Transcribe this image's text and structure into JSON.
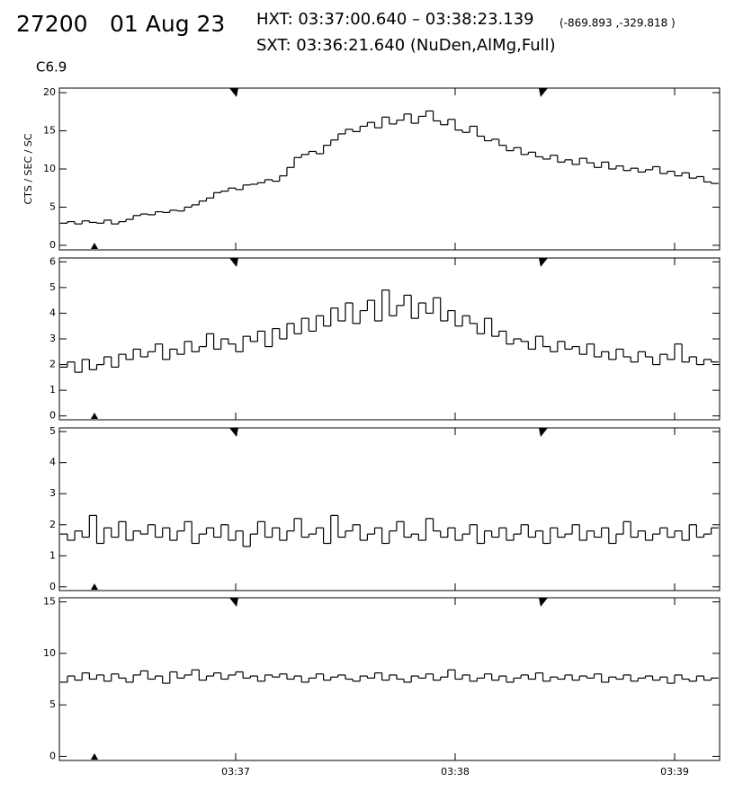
{
  "header": {
    "id": "27200",
    "date": "01 Aug 23",
    "hxt": "HXT: 03:37:00.640 – 03:38:23.139",
    "coords": "(-869.893 ,-329.818 )",
    "sxt": "SXT: 03:36:21.640 (NuDen,AlMg,Full)",
    "class": "C6.9"
  },
  "chart_data": [
    {
      "type": "histogram",
      "ylabel": "CTS / SEC / SC",
      "color": "#000000",
      "bins": [
        12,
        14,
        16,
        18,
        20,
        22,
        24,
        26,
        28,
        30,
        32,
        34,
        36,
        38,
        40,
        42,
        44,
        46,
        48,
        50,
        52,
        54,
        56,
        58,
        60,
        62,
        64,
        66,
        68,
        70,
        72,
        74,
        76,
        78,
        80,
        82,
        84,
        86,
        88,
        90,
        92,
        94,
        96,
        98,
        100,
        102,
        104,
        106,
        108,
        110,
        112,
        114,
        116,
        118,
        120,
        122,
        124,
        126,
        128,
        130,
        132,
        134,
        136,
        138,
        140,
        142,
        144,
        146,
        148,
        150,
        152,
        154,
        156,
        158,
        160,
        162,
        164,
        166,
        168,
        170,
        172,
        174,
        176,
        178,
        180,
        182,
        184,
        186,
        188,
        190,
        192
      ],
      "values": [
        2.9,
        3.1,
        2.8,
        3.2,
        3.0,
        2.9,
        3.3,
        2.8,
        3.1,
        3.4,
        3.9,
        4.1,
        4.0,
        4.4,
        4.3,
        4.6,
        4.5,
        5.0,
        5.3,
        5.8,
        6.2,
        6.9,
        7.1,
        7.5,
        7.3,
        7.9,
        8.0,
        8.2,
        8.6,
        8.4,
        9.1,
        10.2,
        11.5,
        11.9,
        12.3,
        12.0,
        13.1,
        13.8,
        14.6,
        15.2,
        14.9,
        15.6,
        16.1,
        15.4,
        16.8,
        15.9,
        16.4,
        17.2,
        16.0,
        16.9,
        17.6,
        16.3,
        15.8,
        16.5,
        15.1,
        14.8,
        15.6,
        14.3,
        13.7,
        13.9,
        13.1,
        12.4,
        12.8,
        11.9,
        12.2,
        11.6,
        11.3,
        11.8,
        10.9,
        11.2,
        10.6,
        11.4,
        10.8,
        10.2,
        10.9,
        10.0,
        10.4,
        9.8,
        10.1,
        9.6,
        9.9,
        10.3,
        9.4,
        9.7,
        9.1,
        9.5,
        8.8,
        9.0,
        8.3,
        8.1
      ],
      "xlim": [
        11.8,
        192.3
      ],
      "ylim": [
        -0.6,
        20.6
      ],
      "yticks": [
        0,
        5,
        10,
        15,
        20
      ]
    },
    {
      "type": "histogram",
      "color": "#000000",
      "bins": [
        12,
        14,
        16,
        18,
        20,
        22,
        24,
        26,
        28,
        30,
        32,
        34,
        36,
        38,
        40,
        42,
        44,
        46,
        48,
        50,
        52,
        54,
        56,
        58,
        60,
        62,
        64,
        66,
        68,
        70,
        72,
        74,
        76,
        78,
        80,
        82,
        84,
        86,
        88,
        90,
        92,
        94,
        96,
        98,
        100,
        102,
        104,
        106,
        108,
        110,
        112,
        114,
        116,
        118,
        120,
        122,
        124,
        126,
        128,
        130,
        132,
        134,
        136,
        138,
        140,
        142,
        144,
        146,
        148,
        150,
        152,
        154,
        156,
        158,
        160,
        162,
        164,
        166,
        168,
        170,
        172,
        174,
        176,
        178,
        180,
        182,
        184,
        186,
        188,
        190,
        192
      ],
      "values": [
        1.9,
        2.1,
        1.7,
        2.2,
        1.8,
        2.0,
        2.3,
        1.9,
        2.4,
        2.2,
        2.6,
        2.3,
        2.5,
        2.8,
        2.2,
        2.6,
        2.4,
        2.9,
        2.5,
        2.7,
        3.2,
        2.6,
        3.0,
        2.8,
        2.5,
        3.1,
        2.9,
        3.3,
        2.7,
        3.4,
        3.0,
        3.6,
        3.2,
        3.8,
        3.3,
        3.9,
        3.5,
        4.2,
        3.7,
        4.4,
        3.6,
        4.1,
        4.5,
        3.7,
        4.9,
        3.9,
        4.3,
        4.7,
        3.8,
        4.4,
        4.0,
        4.6,
        3.7,
        4.1,
        3.5,
        3.9,
        3.6,
        3.2,
        3.8,
        3.1,
        3.3,
        2.8,
        3.0,
        2.9,
        2.6,
        3.1,
        2.7,
        2.5,
        2.9,
        2.6,
        2.7,
        2.4,
        2.8,
        2.3,
        2.5,
        2.2,
        2.6,
        2.3,
        2.1,
        2.5,
        2.3,
        2.0,
        2.4,
        2.2,
        2.8,
        2.1,
        2.3,
        2.0,
        2.2,
        2.1
      ],
      "xlim": [
        11.8,
        192.3
      ],
      "ylim": [
        -0.15,
        6.15
      ],
      "yticks": [
        0,
        1,
        2,
        3,
        4,
        5,
        6
      ]
    },
    {
      "type": "histogram",
      "color": "#000000",
      "bins": [
        12,
        14,
        16,
        18,
        20,
        22,
        24,
        26,
        28,
        30,
        32,
        34,
        36,
        38,
        40,
        42,
        44,
        46,
        48,
        50,
        52,
        54,
        56,
        58,
        60,
        62,
        64,
        66,
        68,
        70,
        72,
        74,
        76,
        78,
        80,
        82,
        84,
        86,
        88,
        90,
        92,
        94,
        96,
        98,
        100,
        102,
        104,
        106,
        108,
        110,
        112,
        114,
        116,
        118,
        120,
        122,
        124,
        126,
        128,
        130,
        132,
        134,
        136,
        138,
        140,
        142,
        144,
        146,
        148,
        150,
        152,
        154,
        156,
        158,
        160,
        162,
        164,
        166,
        168,
        170,
        172,
        174,
        176,
        178,
        180,
        182,
        184,
        186,
        188,
        190,
        192
      ],
      "values": [
        1.7,
        1.5,
        1.8,
        1.6,
        2.3,
        1.4,
        1.9,
        1.6,
        2.1,
        1.5,
        1.8,
        1.7,
        2.0,
        1.6,
        1.9,
        1.5,
        1.8,
        2.1,
        1.4,
        1.7,
        1.9,
        1.6,
        2.0,
        1.5,
        1.8,
        1.3,
        1.7,
        2.1,
        1.6,
        1.9,
        1.5,
        1.8,
        2.2,
        1.6,
        1.7,
        1.9,
        1.4,
        2.3,
        1.6,
        1.8,
        2.0,
        1.5,
        1.7,
        1.9,
        1.4,
        1.8,
        2.1,
        1.6,
        1.7,
        1.5,
        2.2,
        1.8,
        1.6,
        1.9,
        1.5,
        1.7,
        2.0,
        1.4,
        1.8,
        1.6,
        1.9,
        1.5,
        1.7,
        2.0,
        1.6,
        1.8,
        1.4,
        1.9,
        1.6,
        1.7,
        2.0,
        1.5,
        1.8,
        1.6,
        1.9,
        1.4,
        1.7,
        2.1,
        1.6,
        1.8,
        1.5,
        1.7,
        1.9,
        1.6,
        1.8,
        1.5,
        2.0,
        1.6,
        1.7,
        1.9
      ],
      "xlim": [
        11.8,
        192.3
      ],
      "ylim": [
        -0.12,
        5.12
      ],
      "yticks": [
        0,
        1,
        2,
        3,
        4,
        5
      ]
    },
    {
      "type": "histogram",
      "color": "#000000",
      "bins": [
        12,
        14,
        16,
        18,
        20,
        22,
        24,
        26,
        28,
        30,
        32,
        34,
        36,
        38,
        40,
        42,
        44,
        46,
        48,
        50,
        52,
        54,
        56,
        58,
        60,
        62,
        64,
        66,
        68,
        70,
        72,
        74,
        76,
        78,
        80,
        82,
        84,
        86,
        88,
        90,
        92,
        94,
        96,
        98,
        100,
        102,
        104,
        106,
        108,
        110,
        112,
        114,
        116,
        118,
        120,
        122,
        124,
        126,
        128,
        130,
        132,
        134,
        136,
        138,
        140,
        142,
        144,
        146,
        148,
        150,
        152,
        154,
        156,
        158,
        160,
        162,
        164,
        166,
        168,
        170,
        172,
        174,
        176,
        178,
        180,
        182,
        184,
        186,
        188,
        190,
        192
      ],
      "values": [
        7.2,
        7.8,
        7.4,
        8.1,
        7.5,
        7.9,
        7.3,
        8.0,
        7.6,
        7.2,
        7.9,
        8.3,
        7.5,
        7.8,
        7.1,
        8.2,
        7.6,
        7.9,
        8.4,
        7.4,
        7.8,
        8.1,
        7.5,
        7.9,
        8.2,
        7.6,
        7.8,
        7.3,
        7.9,
        7.7,
        8.0,
        7.5,
        7.8,
        7.2,
        7.6,
        8.0,
        7.4,
        7.7,
        7.9,
        7.5,
        7.3,
        7.8,
        7.6,
        8.1,
        7.4,
        7.9,
        7.5,
        7.2,
        7.8,
        7.6,
        8.0,
        7.4,
        7.7,
        8.4,
        7.5,
        7.9,
        7.3,
        7.6,
        8.0,
        7.4,
        7.8,
        7.2,
        7.6,
        7.9,
        7.5,
        8.1,
        7.3,
        7.7,
        7.5,
        7.9,
        7.4,
        7.8,
        7.6,
        8.0,
        7.2,
        7.7,
        7.5,
        7.9,
        7.3,
        7.6,
        7.8,
        7.4,
        7.7,
        7.1,
        7.9,
        7.5,
        7.3,
        7.8,
        7.4,
        7.6
      ],
      "xlim": [
        11.8,
        192.3
      ],
      "ylim": [
        -0.4,
        15.4
      ],
      "yticks": [
        0,
        5,
        10,
        15
      ],
      "xticks": [
        {
          "value": 60,
          "label": "03:37"
        },
        {
          "value": 120,
          "label": "03:38"
        },
        {
          "value": 180,
          "label": "03:39"
        }
      ]
    }
  ]
}
